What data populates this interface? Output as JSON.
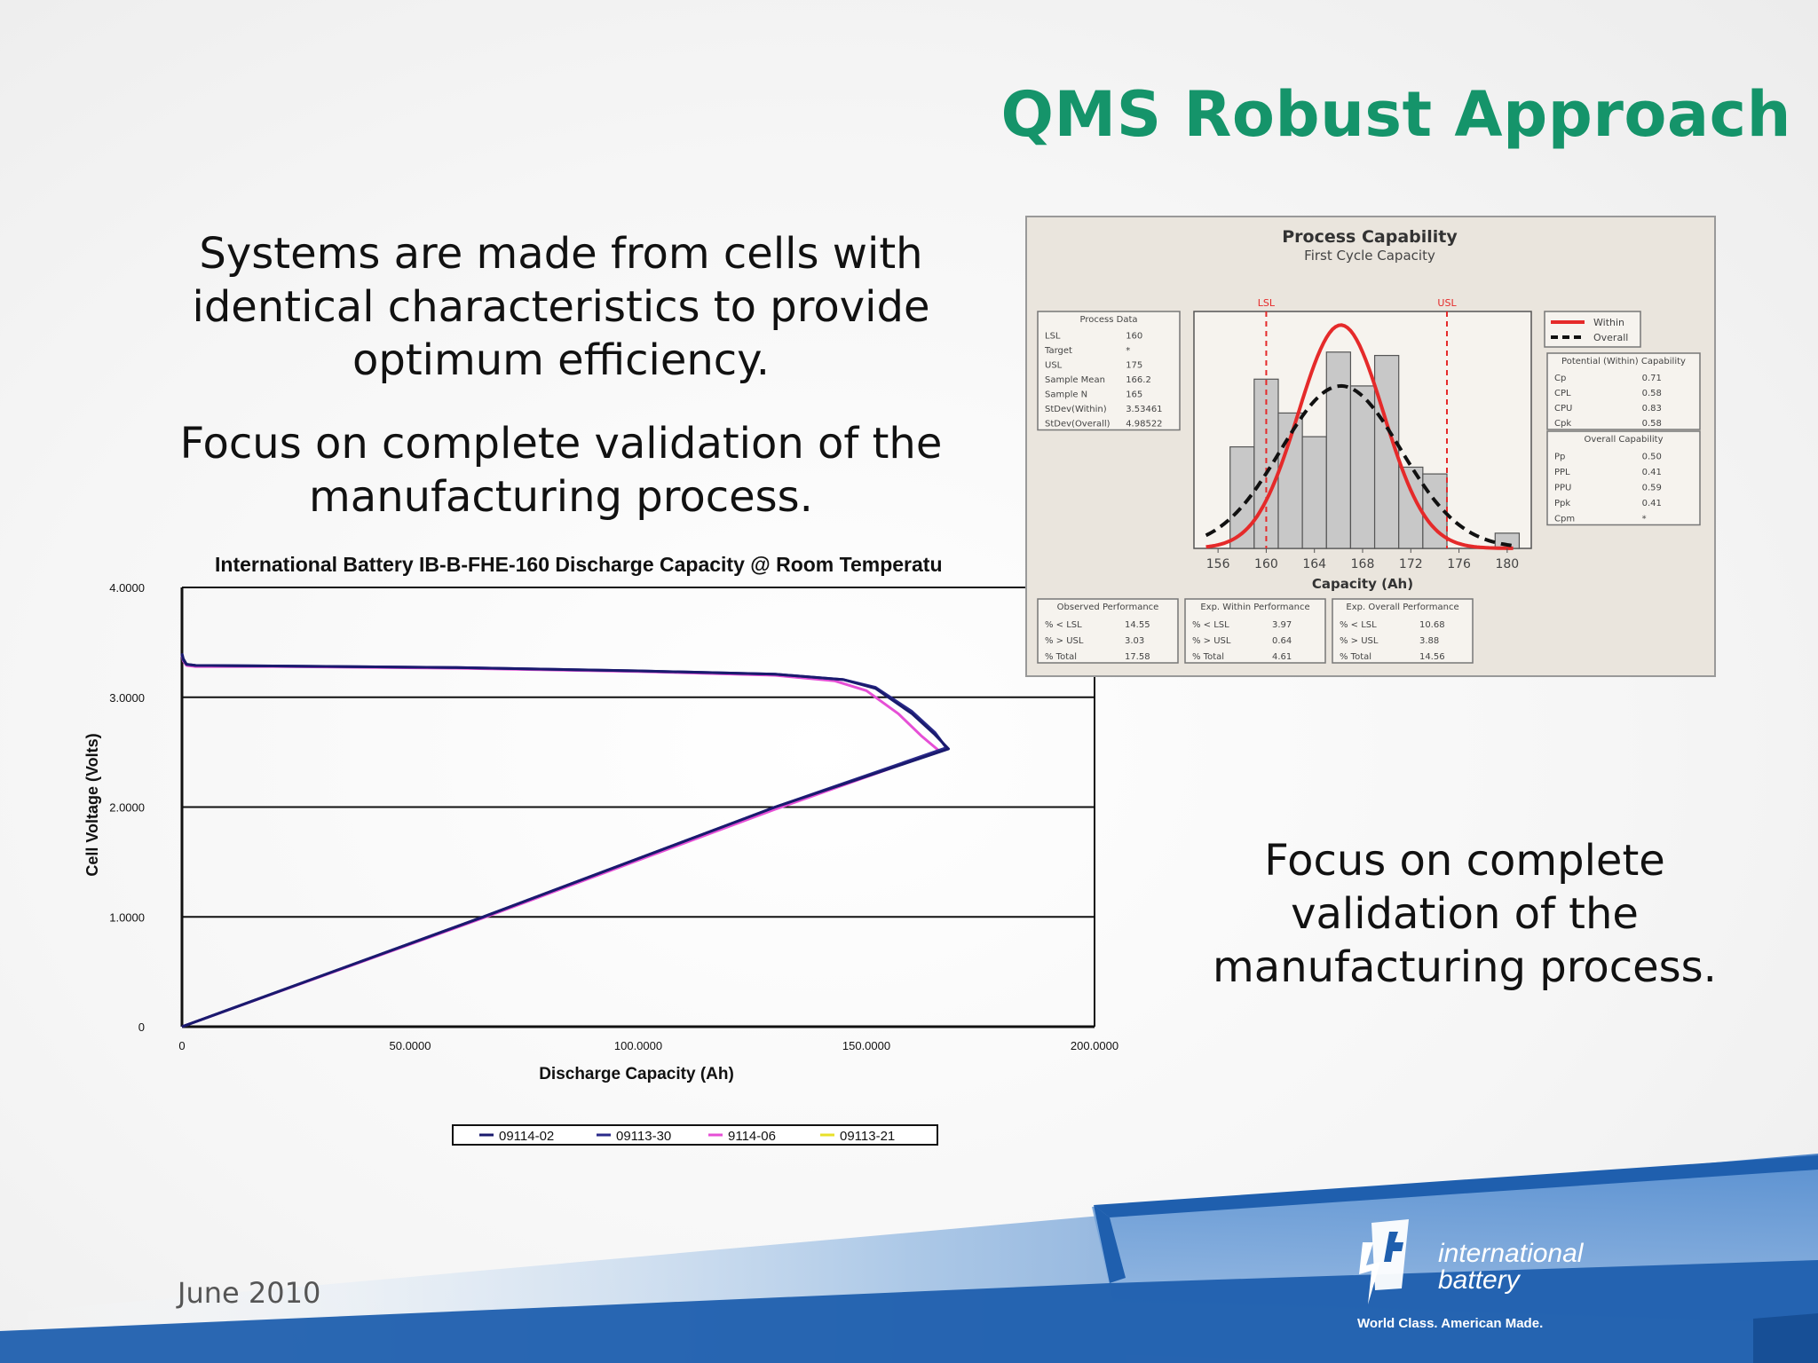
{
  "slide": {
    "title": "QMS Robust Approach",
    "para1": "Systems are made from cells with identical characteristics to provide optimum efficiency.",
    "para2": "Focus on complete validation of the manufacturing process.",
    "para3": "Focus on complete validation of the manufacturing process.",
    "date": "June 2010",
    "accent_color": "#15946a",
    "band_color": "#1f5fae"
  },
  "logo": {
    "line1": "international",
    "line2": "battery",
    "tagline": "World Class. American Made."
  },
  "chart_data": [
    {
      "type": "line",
      "title": "International Battery IB-B-FHE-160  Discharge Capacity @ Room Temperatu",
      "xlabel": "Discharge Capacity (Ah)",
      "ylabel": "Cell Voltage (Volts)",
      "xlim": [
        0,
        200
      ],
      "ylim": [
        0,
        4
      ],
      "x_ticks": [
        "0",
        "50.0000",
        "100.0000",
        "150.0000",
        "200.0000"
      ],
      "y_ticks": [
        "0",
        "1.0000",
        "2.0000",
        "3.0000",
        "4.0000"
      ],
      "grid": true,
      "legend": "bottom",
      "series": [
        {
          "name": "09114-02",
          "color": "#1a1a6e",
          "x": [
            0,
            0.3,
            1,
            3,
            20,
            60,
            100,
            130,
            145,
            152,
            160,
            165,
            168,
            130,
            66,
            0
          ],
          "y": [
            3.4,
            3.35,
            3.3,
            3.29,
            3.285,
            3.27,
            3.24,
            3.21,
            3.16,
            3.08,
            2.85,
            2.66,
            2.53,
            2.0,
            1.0,
            0.0
          ]
        },
        {
          "name": "09113-30",
          "color": "#2a2a8a",
          "x": [
            0,
            0.3,
            1,
            3,
            20,
            60,
            100,
            130,
            145,
            152,
            160,
            165,
            167.5,
            130,
            66,
            0
          ],
          "y": [
            3.39,
            3.34,
            3.3,
            3.29,
            3.285,
            3.27,
            3.24,
            3.21,
            3.16,
            3.09,
            2.87,
            2.68,
            2.54,
            2.0,
            1.0,
            0.0
          ]
        },
        {
          "name": "9114-06",
          "color": "#e64fd6",
          "x": [
            0,
            0.3,
            1,
            3,
            20,
            60,
            100,
            130,
            143,
            150,
            157,
            162,
            166,
            130,
            66,
            0
          ],
          "y": [
            3.38,
            3.33,
            3.29,
            3.28,
            3.28,
            3.265,
            3.235,
            3.2,
            3.15,
            3.06,
            2.85,
            2.65,
            2.51,
            1.98,
            0.99,
            0.0
          ]
        },
        {
          "name": "09113-21",
          "color": "#e8e02a",
          "x": [],
          "y": []
        }
      ]
    },
    {
      "type": "bar",
      "title": "Process Capability",
      "subtitle": "First Cycle Capacity",
      "xlabel": "Capacity (Ah)",
      "x_ticks": [
        "156",
        "160",
        "164",
        "168",
        "172",
        "176",
        "180"
      ],
      "xlim": [
        154,
        182
      ],
      "lsl_label": "LSL",
      "usl_label": "USL",
      "lsl": 160,
      "usl": 175,
      "bins": [
        {
          "start": 157,
          "end": 159,
          "count": 3
        },
        {
          "start": 159,
          "end": 161,
          "count": 5
        },
        {
          "start": 161,
          "end": 163,
          "count": 4
        },
        {
          "start": 163,
          "end": 165,
          "count": 3.3
        },
        {
          "start": 165,
          "end": 167,
          "count": 5.8
        },
        {
          "start": 167,
          "end": 169,
          "count": 4.8
        },
        {
          "start": 169,
          "end": 171,
          "count": 5.7
        },
        {
          "start": 171,
          "end": 173,
          "count": 2.4
        },
        {
          "start": 173,
          "end": 175,
          "count": 2.2
        },
        {
          "start": 179,
          "end": 181,
          "count": 0.45
        }
      ],
      "ymax": 7,
      "fit": {
        "mean": 166.2,
        "within": {
          "sd": 3.53461,
          "peak": 6.6,
          "color": "#e52a2a"
        },
        "overall": {
          "sd": 4.98522,
          "peak": 4.8,
          "color": "#111111"
        }
      },
      "legend": [
        "Within",
        "Overall"
      ],
      "process_data": {
        "heading": "Process Data",
        "rows": [
          [
            "LSL",
            "160"
          ],
          [
            "Target",
            "*"
          ],
          [
            "USL",
            "175"
          ],
          [
            "Sample Mean",
            "166.2"
          ],
          [
            "Sample N",
            "165"
          ],
          [
            "StDev(Within)",
            "3.53461"
          ],
          [
            "StDev(Overall)",
            "4.98522"
          ]
        ]
      },
      "potential": {
        "heading": "Potential (Within) Capability",
        "rows": [
          [
            "Cp",
            "0.71"
          ],
          [
            "CPL",
            "0.58"
          ],
          [
            "CPU",
            "0.83"
          ],
          [
            "Cpk",
            "0.58"
          ]
        ]
      },
      "overall_cap": {
        "heading": "Overall Capability",
        "rows": [
          [
            "Pp",
            "0.50"
          ],
          [
            "PPL",
            "0.41"
          ],
          [
            "PPU",
            "0.59"
          ],
          [
            "Ppk",
            "0.41"
          ],
          [
            "Cpm",
            "*"
          ]
        ]
      },
      "performance": [
        {
          "heading": "Observed Performance",
          "rows": [
            [
              "% < LSL",
              "14.55"
            ],
            [
              "% > USL",
              "3.03"
            ],
            [
              "% Total",
              "17.58"
            ]
          ]
        },
        {
          "heading": "Exp. Within Performance",
          "rows": [
            [
              "% < LSL",
              "3.97"
            ],
            [
              "% > USL",
              "0.64"
            ],
            [
              "% Total",
              "4.61"
            ]
          ]
        },
        {
          "heading": "Exp. Overall Performance",
          "rows": [
            [
              "% < LSL",
              "10.68"
            ],
            [
              "% > USL",
              "3.88"
            ],
            [
              "% Total",
              "14.56"
            ]
          ]
        }
      ]
    }
  ]
}
